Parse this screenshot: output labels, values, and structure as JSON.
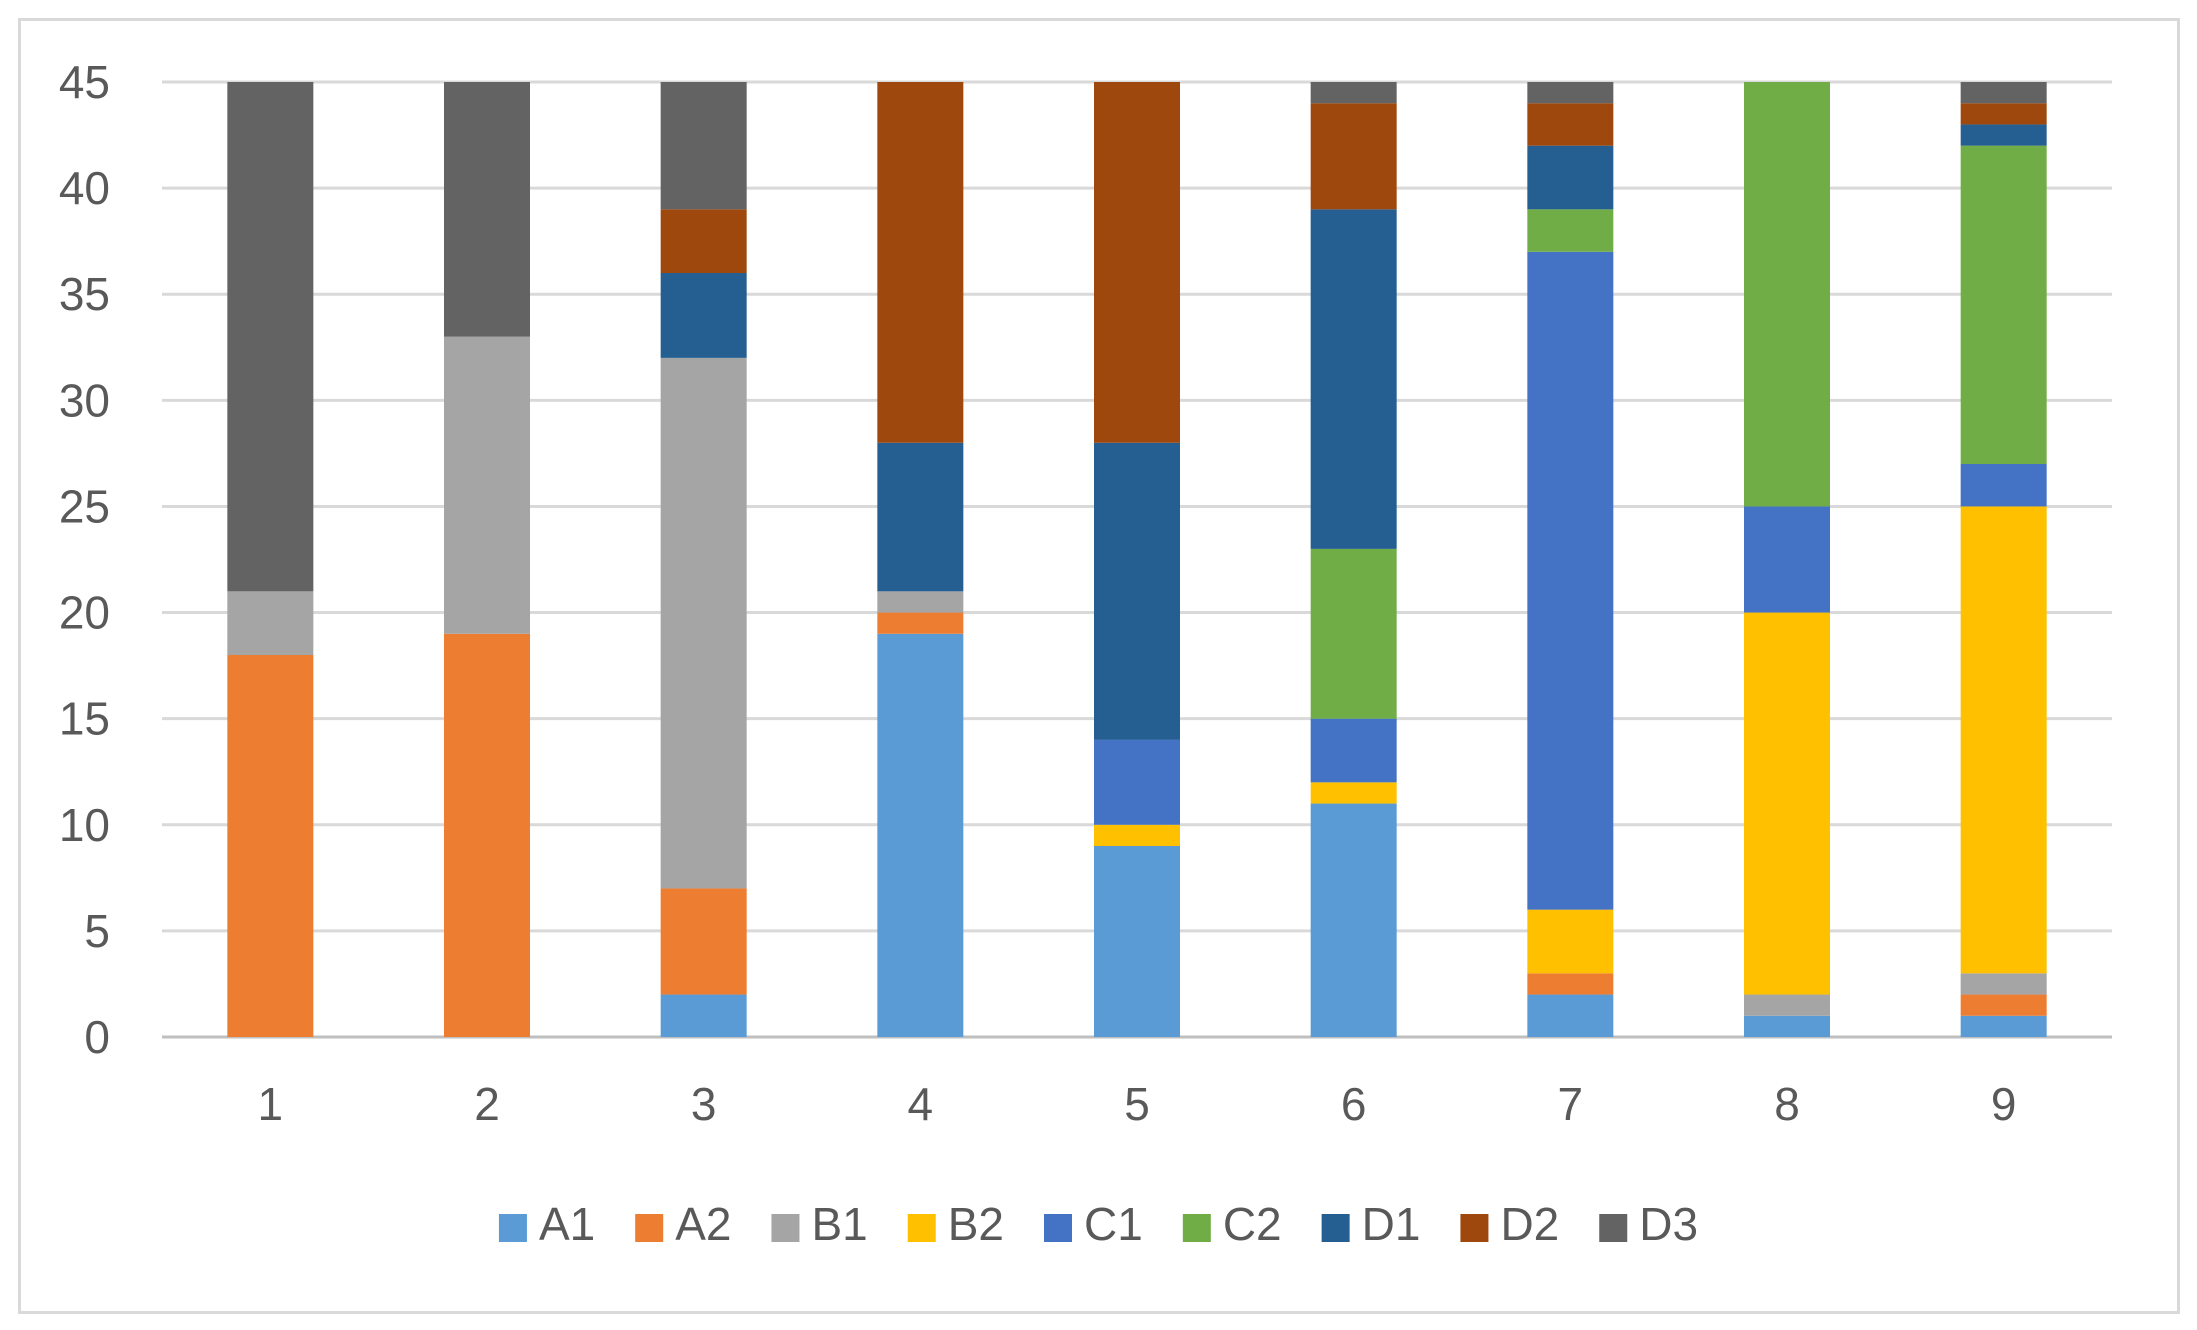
{
  "chart_data": {
    "type": "bar",
    "stacked": true,
    "title": "",
    "xlabel": "",
    "ylabel": "",
    "ylim": [
      0,
      45
    ],
    "yticks": [
      0,
      5,
      10,
      15,
      20,
      25,
      30,
      35,
      40,
      45
    ],
    "categories": [
      "1",
      "2",
      "3",
      "4",
      "5",
      "6",
      "7",
      "8",
      "9"
    ],
    "grid": true,
    "legend_position": "bottom",
    "series": [
      {
        "name": "A1",
        "color": "#5B9BD5",
        "values": [
          0,
          0,
          2,
          19,
          9,
          11,
          2,
          1,
          1
        ]
      },
      {
        "name": "A2",
        "color": "#ED7D31",
        "values": [
          18,
          19,
          5,
          1,
          0,
          0,
          1,
          0,
          1
        ]
      },
      {
        "name": "B1",
        "color": "#A5A5A5",
        "values": [
          3,
          14,
          25,
          1,
          0,
          0,
          0,
          1,
          1
        ]
      },
      {
        "name": "B2",
        "color": "#FFC000",
        "values": [
          0,
          0,
          0,
          0,
          1,
          1,
          3,
          18,
          22
        ]
      },
      {
        "name": "C1",
        "color": "#4472C4",
        "values": [
          0,
          0,
          0,
          0,
          4,
          3,
          31,
          5,
          2
        ]
      },
      {
        "name": "C2",
        "color": "#70AD47",
        "values": [
          0,
          0,
          0,
          0,
          0,
          8,
          2,
          20,
          15
        ]
      },
      {
        "name": "D1",
        "color": "#255E91",
        "values": [
          0,
          0,
          4,
          7,
          14,
          16,
          3,
          0,
          1
        ]
      },
      {
        "name": "D2",
        "color": "#9E480E",
        "values": [
          0,
          0,
          3,
          17,
          17,
          5,
          2,
          0,
          1
        ]
      },
      {
        "name": "D3",
        "color": "#636363",
        "values": [
          24,
          12,
          6,
          0,
          0,
          1,
          1,
          0,
          1
        ]
      }
    ]
  }
}
